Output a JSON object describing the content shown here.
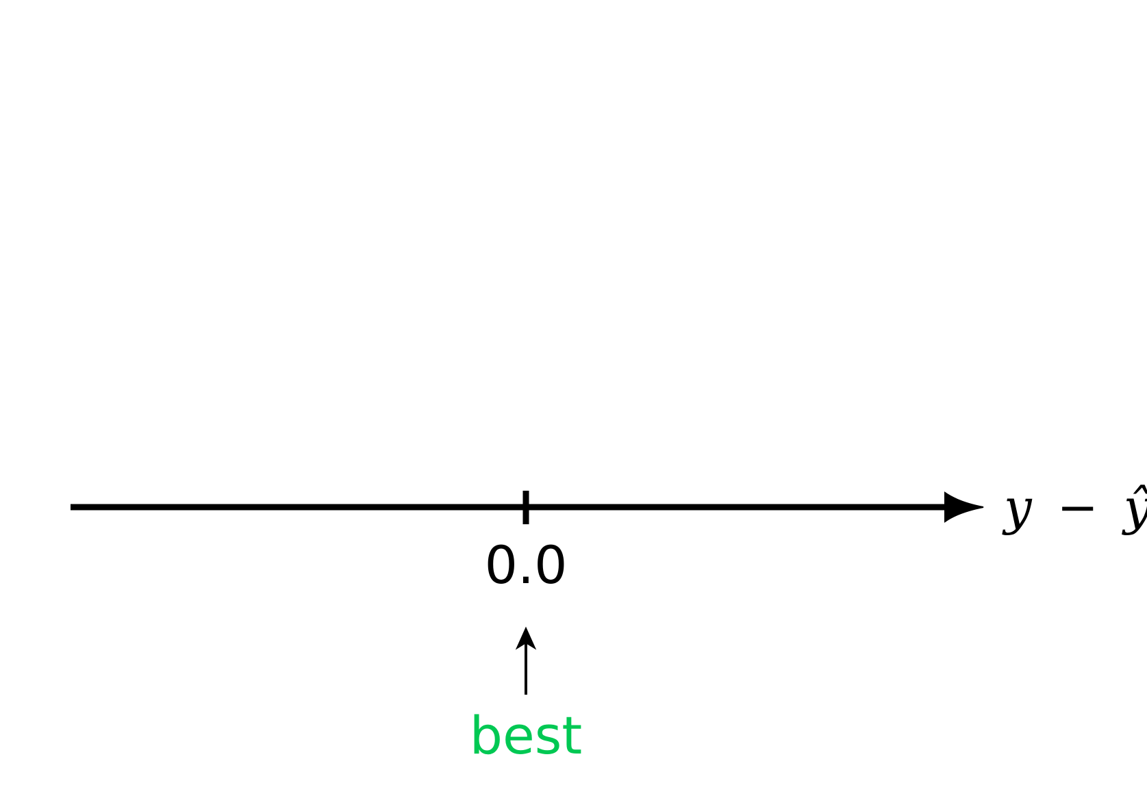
{
  "axis": {
    "label_parts": {
      "y": "y",
      "minus": "−",
      "hat_y": "ŷ"
    },
    "tick_label": "0.0"
  },
  "annotation": {
    "label": "best",
    "color": "#00c853"
  },
  "colors": {
    "line": "#000000",
    "background": "#ffffff"
  }
}
